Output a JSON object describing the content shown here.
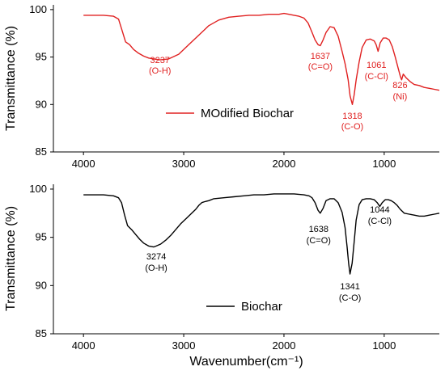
{
  "chart_data": [
    {
      "type": "line",
      "xlabel": "",
      "ylabel": "Transmittance (%)",
      "xlim": [
        4300,
        450
      ],
      "ylim": [
        85,
        100.5
      ],
      "x_ticks": [
        4000,
        3000,
        2000,
        1000
      ],
      "y_ticks": [
        85,
        90,
        95,
        100
      ],
      "legend": {
        "label": "MOdified Biochar",
        "placement": "bottom-center"
      },
      "color": "#e02020",
      "series": [
        {
          "name": "MOdified Biochar",
          "x": [
            4000,
            3800,
            3700,
            3650,
            3620,
            3580,
            3540,
            3500,
            3450,
            3400,
            3350,
            3300,
            3237,
            3150,
            3050,
            2950,
            2850,
            2750,
            2650,
            2550,
            2450,
            2350,
            2250,
            2150,
            2050,
            2000,
            1950,
            1900,
            1850,
            1800,
            1760,
            1720,
            1690,
            1660,
            1637,
            1610,
            1580,
            1540,
            1500,
            1460,
            1420,
            1390,
            1360,
            1340,
            1318,
            1300,
            1280,
            1250,
            1220,
            1180,
            1140,
            1100,
            1080,
            1061,
            1040,
            1010,
            980,
            950,
            920,
            890,
            860,
            840,
            826,
            810,
            780,
            740,
            700,
            650,
            600,
            550,
            500,
            450
          ],
          "y": [
            99.4,
            99.4,
            99.3,
            99.0,
            98.0,
            96.6,
            96.3,
            95.8,
            95.4,
            95.1,
            94.9,
            94.8,
            94.7,
            94.8,
            95.3,
            96.3,
            97.3,
            98.3,
            98.9,
            99.2,
            99.3,
            99.4,
            99.4,
            99.5,
            99.5,
            99.6,
            99.5,
            99.4,
            99.3,
            99.1,
            98.6,
            97.6,
            96.8,
            96.3,
            96.2,
            96.8,
            97.6,
            98.2,
            98.1,
            97.2,
            95.6,
            94.3,
            92.6,
            90.9,
            90.0,
            91.0,
            92.6,
            94.5,
            96.0,
            96.8,
            96.9,
            96.7,
            96.3,
            95.6,
            96.5,
            97.0,
            97.0,
            96.8,
            96.1,
            95.0,
            93.8,
            93.0,
            92.6,
            93.2,
            92.8,
            92.4,
            92.1,
            92.0,
            91.8,
            91.7,
            91.6,
            91.5
          ]
        }
      ],
      "annotations": [
        {
          "text": "3237",
          "sub": "(O-H)",
          "x": 3237
        },
        {
          "text": "1637",
          "sub": "(C=O)",
          "x": 1637
        },
        {
          "text": "1318",
          "sub": "(C-O)",
          "x": 1318
        },
        {
          "text": "1061",
          "sub": "(C-Cl)",
          "x": 1061
        },
        {
          "text": "826",
          "sub": "(Ni)",
          "x": 826
        }
      ]
    },
    {
      "type": "line",
      "xlabel": "Wavenumber(cm⁻¹)",
      "ylabel": "Transmittance (%)",
      "xlim": [
        4300,
        450
      ],
      "ylim": [
        85,
        100.5
      ],
      "x_ticks": [
        4000,
        3000,
        2000,
        1000
      ],
      "y_ticks": [
        85,
        90,
        95,
        100
      ],
      "legend": {
        "label": "Biochar",
        "placement": "bottom-center"
      },
      "color": "#000000",
      "series": [
        {
          "name": "Biochar",
          "x": [
            4000,
            3800,
            3700,
            3650,
            3620,
            3590,
            3560,
            3520,
            3480,
            3440,
            3400,
            3350,
            3300,
            3274,
            3230,
            3180,
            3130,
            3080,
            3030,
            2980,
            2930,
            2880,
            2850,
            2820,
            2790,
            2750,
            2700,
            2600,
            2500,
            2400,
            2300,
            2200,
            2100,
            2000,
            1900,
            1800,
            1750,
            1720,
            1690,
            1660,
            1638,
            1610,
            1580,
            1540,
            1500,
            1460,
            1420,
            1390,
            1370,
            1355,
            1341,
            1320,
            1300,
            1280,
            1250,
            1220,
            1180,
            1140,
            1100,
            1070,
            1044,
            1020,
            990,
            960,
            930,
            900,
            870,
            840,
            800,
            750,
            700,
            650,
            600,
            550,
            500,
            450
          ],
          "y": [
            99.4,
            99.4,
            99.3,
            99.1,
            98.6,
            97.3,
            96.2,
            95.8,
            95.3,
            94.8,
            94.4,
            94.1,
            94.0,
            94.1,
            94.3,
            94.7,
            95.2,
            95.8,
            96.4,
            96.9,
            97.4,
            97.9,
            98.3,
            98.6,
            98.7,
            98.8,
            99.0,
            99.1,
            99.2,
            99.3,
            99.4,
            99.4,
            99.5,
            99.5,
            99.5,
            99.4,
            99.3,
            99.1,
            98.6,
            97.8,
            97.5,
            98.0,
            98.8,
            99.0,
            99.0,
            98.6,
            97.6,
            96.0,
            94.0,
            92.3,
            91.2,
            92.3,
            94.5,
            96.8,
            98.4,
            98.9,
            99.0,
            99.0,
            98.9,
            98.6,
            98.2,
            98.6,
            98.9,
            98.9,
            98.8,
            98.6,
            98.3,
            97.9,
            97.5,
            97.4,
            97.3,
            97.2,
            97.2,
            97.3,
            97.4,
            97.5
          ]
        }
      ],
      "annotations": [
        {
          "text": "3274",
          "sub": "(O-H)",
          "x": 3274
        },
        {
          "text": "1638",
          "sub": "(C=O)",
          "x": 1638
        },
        {
          "text": "1341",
          "sub": "(C-O)",
          "x": 1341
        },
        {
          "text": "1044",
          "sub": "(C-Cl)",
          "x": 1044
        }
      ]
    }
  ]
}
